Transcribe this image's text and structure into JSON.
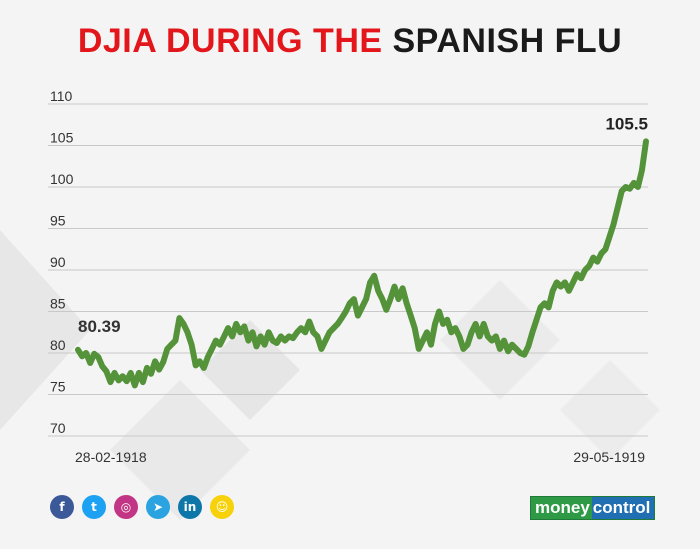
{
  "title": {
    "part_red": "DJIA DURING THE",
    "part_black": "SPANISH FLU"
  },
  "colors": {
    "title_red": "#e3161b",
    "line": "#55933a",
    "grid": "#c9c9c9"
  },
  "chart_data": {
    "type": "line",
    "title": "DJIA DURING THE SPANISH FLU",
    "xlabel": "",
    "ylabel": "",
    "ylim": [
      70,
      110
    ],
    "yticks": [
      110,
      105,
      100,
      95,
      90,
      85,
      80,
      75,
      70
    ],
    "grid": true,
    "x_start_label": "28-02-1918",
    "x_end_label": "29-05-1919",
    "start_value_label": "80.39",
    "end_value_label": "105.5",
    "series": [
      {
        "values": [
          80.39,
          79.6,
          80.0,
          78.8,
          79.9,
          79.5,
          78.4,
          77.8,
          76.5,
          77.6,
          76.7,
          77.2,
          76.6,
          77.6,
          76.1,
          77.6,
          76.5,
          78.2,
          77.5,
          79.0,
          78.0,
          78.9,
          80.5,
          81.0,
          81.5,
          84.2,
          83.5,
          82.5,
          81.0,
          78.5,
          79.0,
          78.2,
          79.5,
          80.5,
          81.5,
          81.0,
          82.0,
          83.0,
          82.0,
          83.5,
          82.5,
          83.2,
          81.5,
          82.5,
          80.8,
          82.0,
          81.0,
          82.5,
          81.5,
          81.2,
          82.0,
          81.5,
          82.0,
          81.8,
          82.5,
          83.0,
          82.5,
          83.8,
          82.5,
          82.0,
          80.5,
          81.5,
          82.5,
          83.0,
          83.5,
          84.2,
          85.0,
          86.0,
          86.5,
          84.5,
          85.5,
          86.5,
          88.5,
          89.3,
          87.5,
          86.5,
          85.2,
          86.5,
          88.0,
          86.5,
          87.8,
          86.0,
          84.5,
          83.0,
          80.5,
          81.5,
          82.5,
          81.0,
          83.5,
          85.0,
          83.5,
          84.0,
          82.5,
          83.0,
          82.0,
          80.5,
          81.0,
          82.5,
          83.5,
          82.0,
          83.5,
          82.0,
          81.5,
          82.0,
          80.5,
          81.5,
          80.2,
          81.0,
          80.5,
          80.0,
          79.8,
          80.8,
          82.5,
          84.0,
          85.5,
          86.0,
          85.5,
          87.5,
          88.5,
          88.0,
          88.5,
          87.5,
          88.5,
          89.5,
          89.0,
          90.0,
          90.5,
          91.5,
          91.0,
          92.0,
          92.5,
          94.0,
          95.5,
          97.5,
          99.5,
          100.0,
          99.8,
          100.5,
          100.0,
          102.0,
          105.5
        ]
      }
    ]
  },
  "social": {
    "icons": [
      {
        "name": "facebook-icon",
        "glyph": "f",
        "color": "#3b5998"
      },
      {
        "name": "twitter-icon",
        "glyph": "t",
        "color": "#1da1f2"
      },
      {
        "name": "instagram-icon",
        "glyph": "◎",
        "color": "#c13584"
      },
      {
        "name": "telegram-icon",
        "glyph": "➤",
        "color": "#2aa3e0"
      },
      {
        "name": "linkedin-icon",
        "glyph": "in",
        "color": "#0e76a8"
      },
      {
        "name": "snapchat-icon",
        "glyph": "☺",
        "color": "#f7d20a"
      }
    ]
  },
  "brand": {
    "money": "money",
    "control": "control"
  }
}
